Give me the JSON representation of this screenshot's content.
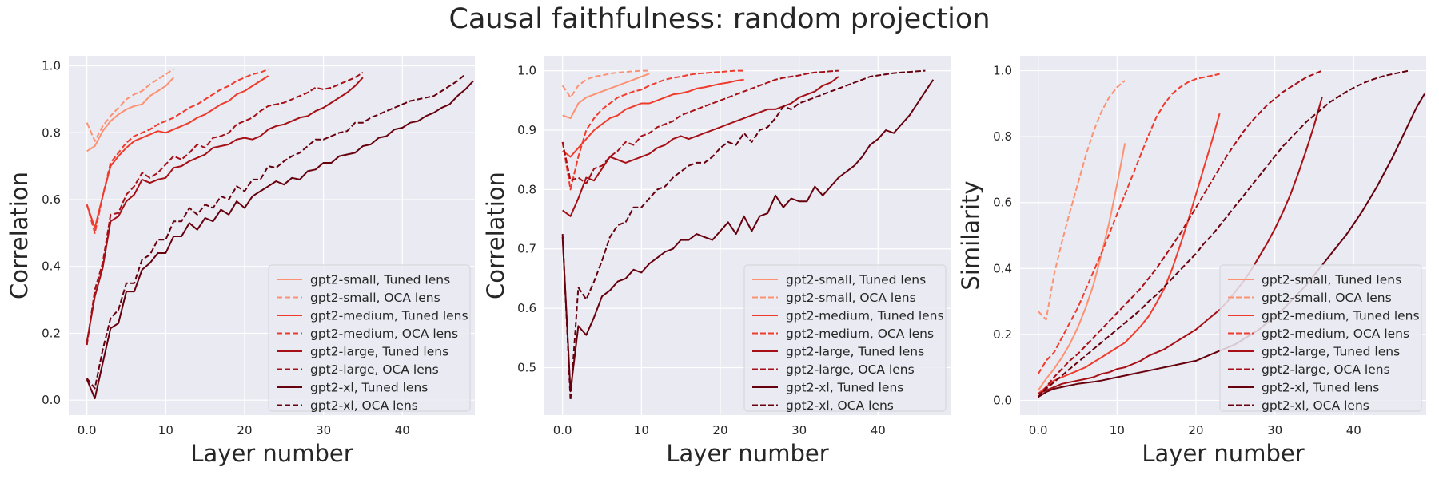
{
  "figure": {
    "title": "Causal faithfulness: random projection"
  },
  "legend_labels": [
    "gpt2-small, Tuned lens",
    "gpt2-small, OCA lens",
    "gpt2-medium, Tuned lens",
    "gpt2-medium, OCA lens",
    "gpt2-large, Tuned lens",
    "gpt2-large, OCA lens",
    "gpt2-xl, Tuned lens",
    "gpt2-xl, OCA lens"
  ],
  "series_colors": {
    "gpt2-small": "#fc9272",
    "gpt2-medium": "#ef3b2c",
    "gpt2-large": "#a50f15",
    "gpt2-xl": "#67000d"
  },
  "style": {
    "background": "#eaeaf2",
    "grid": "#ffffff",
    "grid_on": true,
    "legend_position": "lower right"
  },
  "chart_data": [
    {
      "type": "line",
      "xlabel": "Layer number",
      "ylabel": "Correlation",
      "xlim": [
        -2.3,
        49.2
      ],
      "ylim": [
        -0.045,
        1.03
      ],
      "xticks": [
        0,
        10,
        20,
        30,
        40
      ],
      "yticks": [
        0.0,
        0.2,
        0.4,
        0.6,
        0.8,
        1.0
      ],
      "series": [
        {
          "name": "gpt2-small, Tuned lens",
          "model": "gpt2-small",
          "dash": false,
          "y": [
            0.745,
            0.76,
            0.805,
            0.835,
            0.855,
            0.87,
            0.88,
            0.885,
            0.91,
            0.925,
            0.94,
            0.965
          ]
        },
        {
          "name": "gpt2-small, OCA lens",
          "model": "gpt2-small",
          "dash": true,
          "y": [
            0.83,
            0.775,
            0.82,
            0.85,
            0.875,
            0.9,
            0.915,
            0.925,
            0.945,
            0.96,
            0.975,
            0.99
          ]
        },
        {
          "name": "gpt2-medium, Tuned lens",
          "model": "gpt2-medium",
          "dash": false,
          "y": [
            0.585,
            0.515,
            0.61,
            0.7,
            0.73,
            0.755,
            0.775,
            0.785,
            0.795,
            0.805,
            0.8,
            0.81,
            0.82,
            0.83,
            0.845,
            0.855,
            0.87,
            0.885,
            0.895,
            0.915,
            0.925,
            0.94,
            0.955,
            0.97
          ]
        },
        {
          "name": "gpt2-medium, OCA lens",
          "model": "gpt2-medium",
          "dash": true,
          "y": [
            0.585,
            0.5,
            0.61,
            0.71,
            0.74,
            0.77,
            0.79,
            0.8,
            0.81,
            0.825,
            0.835,
            0.845,
            0.86,
            0.875,
            0.885,
            0.9,
            0.915,
            0.93,
            0.94,
            0.955,
            0.965,
            0.975,
            0.98,
            0.99
          ]
        },
        {
          "name": "gpt2-large, Tuned lens",
          "model": "gpt2-large",
          "dash": false,
          "y": [
            0.175,
            0.31,
            0.395,
            0.535,
            0.55,
            0.595,
            0.615,
            0.66,
            0.65,
            0.66,
            0.665,
            0.695,
            0.7,
            0.715,
            0.725,
            0.735,
            0.755,
            0.76,
            0.765,
            0.78,
            0.785,
            0.78,
            0.79,
            0.81,
            0.82,
            0.825,
            0.835,
            0.845,
            0.85,
            0.865,
            0.875,
            0.89,
            0.905,
            0.92,
            0.94,
            0.965
          ]
        },
        {
          "name": "gpt2-large, OCA lens",
          "model": "gpt2-large",
          "dash": true,
          "y": [
            0.165,
            0.33,
            0.41,
            0.555,
            0.56,
            0.615,
            0.64,
            0.68,
            0.665,
            0.68,
            0.705,
            0.73,
            0.72,
            0.74,
            0.765,
            0.755,
            0.785,
            0.79,
            0.8,
            0.825,
            0.835,
            0.845,
            0.865,
            0.88,
            0.885,
            0.89,
            0.9,
            0.91,
            0.92,
            0.935,
            0.93,
            0.935,
            0.945,
            0.955,
            0.965,
            0.98
          ]
        },
        {
          "name": "gpt2-xl, Tuned lens",
          "model": "gpt2-xl",
          "dash": false,
          "y": [
            0.062,
            0.005,
            0.11,
            0.215,
            0.23,
            0.325,
            0.325,
            0.39,
            0.41,
            0.44,
            0.44,
            0.49,
            0.49,
            0.53,
            0.51,
            0.545,
            0.535,
            0.57,
            0.555,
            0.595,
            0.575,
            0.61,
            0.625,
            0.64,
            0.655,
            0.645,
            0.665,
            0.66,
            0.685,
            0.69,
            0.71,
            0.71,
            0.73,
            0.735,
            0.74,
            0.76,
            0.765,
            0.785,
            0.79,
            0.81,
            0.815,
            0.83,
            0.835,
            0.85,
            0.86,
            0.875,
            0.885,
            0.91,
            0.93,
            0.955
          ]
        },
        {
          "name": "gpt2-xl, OCA lens",
          "model": "gpt2-xl",
          "dash": true,
          "y": [
            0.065,
            0.035,
            0.15,
            0.245,
            0.27,
            0.35,
            0.35,
            0.42,
            0.435,
            0.48,
            0.48,
            0.535,
            0.535,
            0.575,
            0.555,
            0.585,
            0.575,
            0.61,
            0.6,
            0.64,
            0.625,
            0.66,
            0.66,
            0.7,
            0.695,
            0.715,
            0.73,
            0.74,
            0.76,
            0.78,
            0.78,
            0.79,
            0.8,
            0.805,
            0.83,
            0.83,
            0.845,
            0.855,
            0.865,
            0.875,
            0.885,
            0.895,
            0.9,
            0.905,
            0.91,
            0.925,
            0.94,
            0.955,
            0.975
          ]
        }
      ]
    },
    {
      "type": "line",
      "xlabel": "Layer number",
      "ylabel": "Correlation",
      "xlim": [
        -2.3,
        49.2
      ],
      "ylim": [
        0.42,
        1.025
      ],
      "xticks": [
        0,
        10,
        20,
        30,
        40
      ],
      "yticks": [
        0.5,
        0.6,
        0.7,
        0.8,
        0.9,
        1.0
      ],
      "series": [
        {
          "name": "gpt2-small, Tuned lens",
          "model": "gpt2-small",
          "dash": false,
          "y": [
            0.925,
            0.92,
            0.945,
            0.955,
            0.96,
            0.965,
            0.97,
            0.975,
            0.98,
            0.985,
            0.99,
            0.995
          ]
        },
        {
          "name": "gpt2-small, OCA lens",
          "model": "gpt2-small",
          "dash": true,
          "y": [
            0.975,
            0.955,
            0.975,
            0.985,
            0.99,
            0.992,
            0.995,
            0.997,
            0.998,
            0.999,
            1.0,
            1.0
          ]
        },
        {
          "name": "gpt2-medium, Tuned lens",
          "model": "gpt2-medium",
          "dash": false,
          "y": [
            0.865,
            0.855,
            0.87,
            0.885,
            0.9,
            0.91,
            0.92,
            0.925,
            0.935,
            0.94,
            0.945,
            0.945,
            0.95,
            0.955,
            0.96,
            0.962,
            0.965,
            0.97,
            0.972,
            0.975,
            0.978,
            0.98,
            0.983,
            0.985
          ]
        },
        {
          "name": "gpt2-medium, OCA lens",
          "model": "gpt2-medium",
          "dash": true,
          "y": [
            0.88,
            0.8,
            0.855,
            0.9,
            0.92,
            0.935,
            0.945,
            0.955,
            0.96,
            0.965,
            0.968,
            0.975,
            0.98,
            0.985,
            0.988,
            0.99,
            0.993,
            0.995,
            0.996,
            0.997,
            0.998,
            0.999,
            1.0,
            1.0
          ]
        },
        {
          "name": "gpt2-large, Tuned lens",
          "model": "gpt2-large",
          "dash": false,
          "y": [
            0.765,
            0.755,
            0.785,
            0.82,
            0.815,
            0.835,
            0.855,
            0.85,
            0.845,
            0.85,
            0.855,
            0.86,
            0.87,
            0.875,
            0.885,
            0.89,
            0.885,
            0.89,
            0.895,
            0.9,
            0.905,
            0.91,
            0.915,
            0.92,
            0.925,
            0.93,
            0.935,
            0.935,
            0.94,
            0.945,
            0.955,
            0.96,
            0.965,
            0.975,
            0.98,
            0.99
          ]
        },
        {
          "name": "gpt2-large, OCA lens",
          "model": "gpt2-large",
          "dash": true,
          "y": [
            0.88,
            0.815,
            0.82,
            0.81,
            0.835,
            0.84,
            0.855,
            0.865,
            0.88,
            0.875,
            0.89,
            0.895,
            0.905,
            0.91,
            0.915,
            0.925,
            0.93,
            0.935,
            0.94,
            0.945,
            0.95,
            0.955,
            0.96,
            0.965,
            0.97,
            0.975,
            0.98,
            0.985,
            0.988,
            0.99,
            0.992,
            0.995,
            0.997,
            0.998,
            0.999,
            1.0
          ]
        },
        {
          "name": "gpt2-xl, Tuned lens",
          "model": "gpt2-xl",
          "dash": false,
          "y": [
            0.72,
            0.46,
            0.57,
            0.555,
            0.585,
            0.62,
            0.63,
            0.645,
            0.65,
            0.665,
            0.66,
            0.675,
            0.685,
            0.695,
            0.7,
            0.715,
            0.715,
            0.725,
            0.72,
            0.715,
            0.73,
            0.745,
            0.725,
            0.755,
            0.73,
            0.755,
            0.76,
            0.79,
            0.77,
            0.785,
            0.78,
            0.78,
            0.805,
            0.79,
            0.805,
            0.82,
            0.83,
            0.84,
            0.855,
            0.875,
            0.885,
            0.9,
            0.895,
            0.91,
            0.925,
            0.945,
            0.965,
            0.985
          ]
        },
        {
          "name": "gpt2-xl, OCA lens",
          "model": "gpt2-xl",
          "dash": true,
          "y": [
            0.725,
            0.445,
            0.635,
            0.615,
            0.645,
            0.68,
            0.72,
            0.74,
            0.745,
            0.77,
            0.77,
            0.785,
            0.8,
            0.805,
            0.82,
            0.83,
            0.84,
            0.845,
            0.845,
            0.855,
            0.87,
            0.88,
            0.875,
            0.895,
            0.88,
            0.9,
            0.905,
            0.92,
            0.94,
            0.935,
            0.945,
            0.95,
            0.955,
            0.96,
            0.965,
            0.97,
            0.975,
            0.98,
            0.985,
            0.99,
            0.992,
            0.994,
            0.996,
            0.997,
            0.998,
            0.999,
            1.0
          ]
        }
      ]
    },
    {
      "type": "line",
      "xlabel": "Layer number",
      "ylabel": "Similarity",
      "xlim": [
        -2.3,
        49.2
      ],
      "ylim": [
        -0.045,
        1.045
      ],
      "xticks": [
        0,
        10,
        20,
        30,
        40
      ],
      "yticks": [
        0.0,
        0.2,
        0.4,
        0.6,
        0.8,
        1.0
      ],
      "series": [
        {
          "name": "gpt2-small, Tuned lens",
          "model": "gpt2-small",
          "dash": false,
          "y": [
            0.03,
            0.065,
            0.095,
            0.13,
            0.17,
            0.22,
            0.28,
            0.35,
            0.44,
            0.54,
            0.655,
            0.78
          ]
        },
        {
          "name": "gpt2-small, OCA lens",
          "model": "gpt2-small",
          "dash": true,
          "y": [
            0.27,
            0.245,
            0.38,
            0.48,
            0.57,
            0.655,
            0.74,
            0.815,
            0.875,
            0.92,
            0.95,
            0.97
          ]
        },
        {
          "name": "gpt2-medium, Tuned lens",
          "model": "gpt2-medium",
          "dash": false,
          "y": [
            0.02,
            0.04,
            0.06,
            0.07,
            0.08,
            0.09,
            0.1,
            0.115,
            0.13,
            0.145,
            0.16,
            0.175,
            0.2,
            0.225,
            0.255,
            0.295,
            0.34,
            0.4,
            0.47,
            0.545,
            0.625,
            0.705,
            0.785,
            0.87
          ]
        },
        {
          "name": "gpt2-medium, OCA lens",
          "model": "gpt2-medium",
          "dash": true,
          "y": [
            0.08,
            0.12,
            0.145,
            0.19,
            0.235,
            0.28,
            0.335,
            0.39,
            0.445,
            0.505,
            0.565,
            0.625,
            0.685,
            0.745,
            0.805,
            0.86,
            0.9,
            0.93,
            0.95,
            0.965,
            0.975,
            0.98,
            0.985,
            0.99
          ]
        },
        {
          "name": "gpt2-large, Tuned lens",
          "model": "gpt2-large",
          "dash": false,
          "y": [
            0.02,
            0.03,
            0.04,
            0.05,
            0.055,
            0.06,
            0.065,
            0.07,
            0.08,
            0.085,
            0.095,
            0.1,
            0.11,
            0.12,
            0.135,
            0.145,
            0.155,
            0.17,
            0.185,
            0.2,
            0.215,
            0.235,
            0.255,
            0.275,
            0.3,
            0.33,
            0.36,
            0.395,
            0.435,
            0.475,
            0.52,
            0.57,
            0.625,
            0.69,
            0.76,
            0.835,
            0.92
          ]
        },
        {
          "name": "gpt2-large, OCA lens",
          "model": "gpt2-large",
          "dash": true,
          "y": [
            0.01,
            0.04,
            0.07,
            0.095,
            0.12,
            0.14,
            0.165,
            0.19,
            0.215,
            0.24,
            0.265,
            0.29,
            0.315,
            0.34,
            0.37,
            0.4,
            0.435,
            0.47,
            0.505,
            0.545,
            0.585,
            0.625,
            0.665,
            0.705,
            0.745,
            0.78,
            0.815,
            0.845,
            0.87,
            0.895,
            0.915,
            0.935,
            0.95,
            0.965,
            0.98,
            0.99,
            1.0
          ]
        },
        {
          "name": "gpt2-xl, Tuned lens",
          "model": "gpt2-xl",
          "dash": false,
          "y": [
            0.01,
            0.025,
            0.035,
            0.04,
            0.045,
            0.05,
            0.053,
            0.056,
            0.06,
            0.065,
            0.07,
            0.075,
            0.08,
            0.085,
            0.09,
            0.095,
            0.1,
            0.105,
            0.11,
            0.115,
            0.12,
            0.13,
            0.14,
            0.15,
            0.16,
            0.17,
            0.185,
            0.2,
            0.215,
            0.235,
            0.255,
            0.275,
            0.3,
            0.325,
            0.35,
            0.38,
            0.41,
            0.44,
            0.47,
            0.5,
            0.535,
            0.57,
            0.61,
            0.65,
            0.695,
            0.74,
            0.79,
            0.84,
            0.89,
            0.93
          ]
        },
        {
          "name": "gpt2-xl, OCA lens",
          "model": "gpt2-xl",
          "dash": true,
          "y": [
            0.01,
            0.035,
            0.055,
            0.075,
            0.095,
            0.115,
            0.135,
            0.155,
            0.175,
            0.195,
            0.215,
            0.235,
            0.255,
            0.275,
            0.3,
            0.32,
            0.345,
            0.37,
            0.395,
            0.42,
            0.445,
            0.475,
            0.5,
            0.53,
            0.56,
            0.59,
            0.62,
            0.65,
            0.68,
            0.71,
            0.74,
            0.77,
            0.795,
            0.82,
            0.845,
            0.865,
            0.885,
            0.905,
            0.92,
            0.935,
            0.948,
            0.96,
            0.97,
            0.978,
            0.985,
            0.99,
            0.995,
            1.0
          ]
        }
      ]
    }
  ]
}
